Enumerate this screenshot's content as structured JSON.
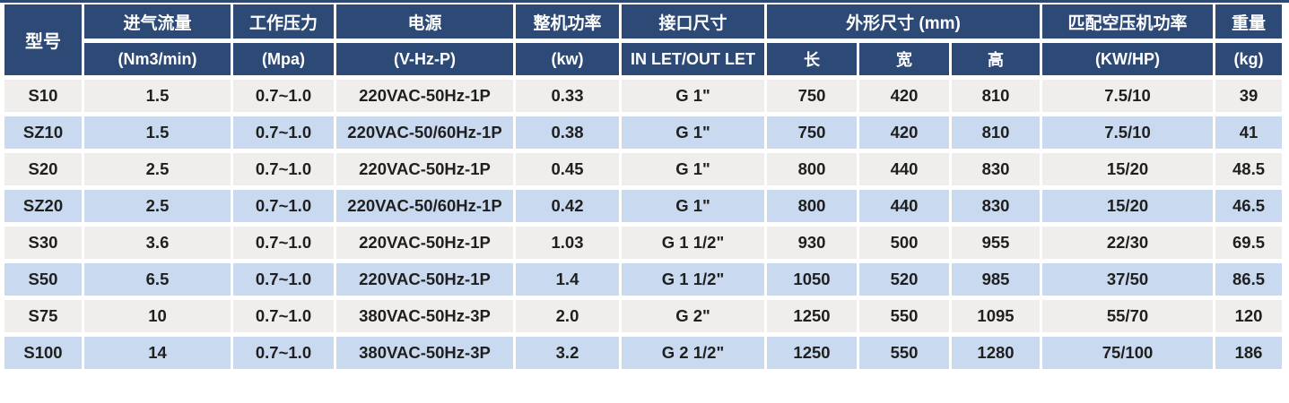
{
  "colors": {
    "header_navy": "#2d4976",
    "row_gray": "#efeeec",
    "row_blue": "#c9d9ef",
    "grid_white": "#ffffff",
    "data_text": "#1f1f1f",
    "header_text": "#ffffff"
  },
  "table": {
    "header": {
      "model": "型号",
      "intake_flow_title": "进气流量",
      "intake_flow_sub": "(Nm3/min)",
      "working_pressure_title": "工作压力",
      "working_pressure_sub": "(Mpa)",
      "power_supply_title": "电源",
      "power_supply_sub": "(V-Hz-P)",
      "total_power_title": "整机功率",
      "total_power_sub": "(kw)",
      "port_size_title": "接口尺寸",
      "port_size_sub": "IN LET/OUT LET",
      "dimensions_title": "外形尺寸 (mm)",
      "dimensions_length": "长",
      "dimensions_width": "宽",
      "dimensions_height": "高",
      "matching_power_title": "匹配空压机功率",
      "matching_power_sub": "(KW/HP)",
      "weight_title": "重量",
      "weight_sub": "(kg)"
    },
    "column_keys": [
      "model",
      "intake-flow",
      "working-pressure",
      "power-supply",
      "total-power",
      "port-size",
      "length",
      "width",
      "height",
      "matching-compressor-power",
      "weight"
    ],
    "rows": [
      [
        "S10",
        "1.5",
        "0.7~1.0",
        "220VAC-50Hz-1P",
        "0.33",
        "G 1\"",
        "750",
        "420",
        "810",
        "7.5/10",
        "39"
      ],
      [
        "SZ10",
        "1.5",
        "0.7~1.0",
        "220VAC-50/60Hz-1P",
        "0.38",
        "G 1\"",
        "750",
        "420",
        "810",
        "7.5/10",
        "41"
      ],
      [
        "S20",
        "2.5",
        "0.7~1.0",
        "220VAC-50Hz-1P",
        "0.45",
        "G 1\"",
        "800",
        "440",
        "830",
        "15/20",
        "48.5"
      ],
      [
        "SZ20",
        "2.5",
        "0.7~1.0",
        "220VAC-50/60Hz-1P",
        "0.42",
        "G 1\"",
        "800",
        "440",
        "830",
        "15/20",
        "46.5"
      ],
      [
        "S30",
        "3.6",
        "0.7~1.0",
        "220VAC-50Hz-1P",
        "1.03",
        "G 1 1/2\"",
        "930",
        "500",
        "955",
        "22/30",
        "69.5"
      ],
      [
        "S50",
        "6.5",
        "0.7~1.0",
        "220VAC-50Hz-1P",
        "1.4",
        "G 1 1/2\"",
        "1050",
        "520",
        "985",
        "37/50",
        "86.5"
      ],
      [
        "S75",
        "10",
        "0.7~1.0",
        "380VAC-50Hz-3P",
        "2.0",
        "G 2\"",
        "1250",
        "550",
        "1095",
        "55/70",
        "120"
      ],
      [
        "S100",
        "14",
        "0.7~1.0",
        "380VAC-50Hz-3P",
        "3.2",
        "G 2 1/2\"",
        "1250",
        "550",
        "1280",
        "75/100",
        "186"
      ]
    ]
  }
}
